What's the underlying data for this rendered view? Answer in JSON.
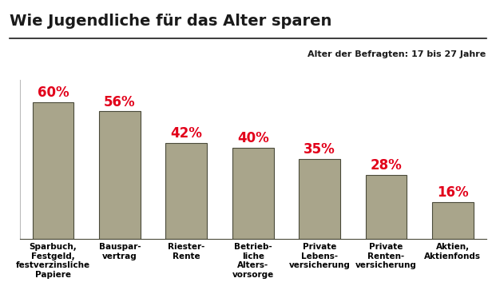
{
  "chart_data": {
    "type": "bar",
    "title": "Wie Jugendliche für das Alter sparen",
    "subtitle": "Alter der Befragten: 17 bis 27 Jahre",
    "categories": [
      "Sparbuch,\nFestgeld,\nfestverzinsliche\nPapiere",
      "Bauspar-\nvertrag",
      "Riester-\nRente",
      "Betrieb-\nliche\nAlters-\nvorsorge",
      "Private\nLebens-\nversicherung",
      "Private\nRenten-\nversicherung",
      "Aktien,\nAktienfonds"
    ],
    "values": [
      60,
      56,
      42,
      40,
      35,
      28,
      16
    ],
    "value_labels": [
      "60%",
      "56%",
      "42%",
      "40%",
      "35%",
      "28%",
      "16%"
    ],
    "data_labels": true,
    "color": "#a9a58b",
    "ylim": [
      0,
      70
    ],
    "tick_labels": "x",
    "grid": false
  }
}
